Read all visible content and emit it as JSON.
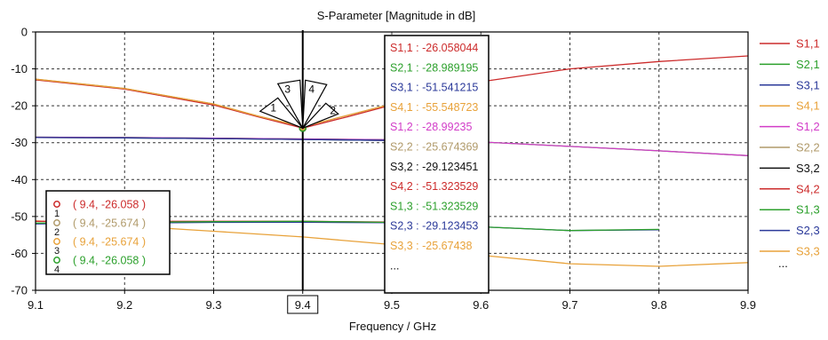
{
  "chart_data": {
    "type": "line",
    "title": "S-Parameter [Magnitude in dB]",
    "xlabel": "Frequency / GHz",
    "ylabel": "",
    "xlim": [
      9.1,
      9.9
    ],
    "ylim": [
      -70,
      0
    ],
    "xticks": [
      "9.1",
      "9.2",
      "9.3",
      "9.4",
      "9.5",
      "9.6",
      "9.7",
      "9.8",
      "9.9"
    ],
    "yticks": [
      "0",
      "-10",
      "-20",
      "-30",
      "-40",
      "-50",
      "-60",
      "-70"
    ],
    "grid": true,
    "legend_position": "right",
    "highlighted_x_tick": "9.4",
    "cursor_x": 9.4,
    "series": [
      {
        "name": "S1,1",
        "color": "#cc2b2b",
        "x": [
          9.1,
          9.2,
          9.3,
          9.35,
          9.4,
          9.45,
          9.5,
          9.6,
          9.7,
          9.8,
          9.9
        ],
        "values": [
          -13,
          -15.5,
          -19.8,
          -23,
          -26.06,
          -23,
          -19.8,
          -13.5,
          -10,
          -8,
          -6.5
        ]
      },
      {
        "name": "S2,1",
        "color": "#2ca02c",
        "x": [
          9.1,
          9.2,
          9.3,
          9.4,
          9.5,
          9.6,
          9.7,
          9.8,
          9.9
        ],
        "values": [
          -28.5,
          -28.6,
          -28.8,
          -28.99,
          -29.2,
          -29.8,
          -31,
          -32.2,
          -33.5
        ]
      },
      {
        "name": "S3,1",
        "color": "#2b3a9a",
        "x": [
          9.1,
          9.2,
          9.3,
          9.4,
          9.5,
          9.6,
          9.7,
          9.8
        ],
        "values": [
          -52,
          -51.8,
          -51.6,
          -51.54,
          -51.7,
          -52.8,
          -53.8,
          -53.6
        ]
      },
      {
        "name": "S4,1",
        "color": "#e8a23a",
        "x": [
          9.1,
          9.2,
          9.3,
          9.4,
          9.5,
          9.6,
          9.7,
          9.8,
          9.9
        ],
        "values": [
          -51.2,
          -52.5,
          -54,
          -55.55,
          -57.6,
          -60.5,
          -62.8,
          -63.5,
          -62.5
        ]
      },
      {
        "name": "S1,2",
        "color": "#d23cc8",
        "x": [
          9.1,
          9.2,
          9.3,
          9.4,
          9.5,
          9.6,
          9.7,
          9.8,
          9.9
        ],
        "values": [
          -28.5,
          -28.6,
          -28.8,
          -28.99,
          -29.2,
          -29.8,
          -31,
          -32.2,
          -33.5
        ]
      },
      {
        "name": "S2,2",
        "color": "#b09a6a",
        "x": [
          9.1,
          9.2,
          9.3,
          9.35,
          9.4,
          9.45,
          9.5
        ],
        "values": [
          -12.8,
          -15.3,
          -19.5,
          -22.8,
          -25.67,
          -22.6,
          -19.5
        ]
      },
      {
        "name": "S3,2",
        "color": "#111111",
        "x": [
          9.1,
          9.2,
          9.3,
          9.4,
          9.5
        ],
        "values": [
          -28.6,
          -28.7,
          -28.9,
          -29.12,
          -29.4
        ]
      },
      {
        "name": "S4,2",
        "color": "#cc2b2b",
        "x": [
          9.1,
          9.2,
          9.3,
          9.4,
          9.5
        ],
        "values": [
          -51.3,
          -51.3,
          -51.3,
          -51.32,
          -51.5
        ]
      },
      {
        "name": "S1,3",
        "color": "#2ca02c",
        "x": [
          9.1,
          9.2,
          9.3,
          9.4,
          9.5,
          9.6,
          9.7,
          9.8
        ],
        "values": [
          -51.8,
          -51.6,
          -51.4,
          -51.32,
          -51.6,
          -52.8,
          -53.8,
          -53.5
        ]
      },
      {
        "name": "S2,3",
        "color": "#2b3a9a",
        "x": [
          9.1,
          9.2,
          9.3,
          9.4,
          9.5
        ],
        "values": [
          -28.6,
          -28.7,
          -28.9,
          -29.12,
          -29.4
        ]
      },
      {
        "name": "S3,3",
        "color": "#e8a23a",
        "x": [
          9.1,
          9.2,
          9.3,
          9.35,
          9.4,
          9.45,
          9.5
        ],
        "values": [
          -12.8,
          -15.3,
          -19.5,
          -22.8,
          -25.67,
          -22.6,
          -19.5
        ]
      }
    ],
    "legend_more": "...",
    "cursor_readout": [
      {
        "text": "S1,1 : -26.058044",
        "color": "#cc2b2b"
      },
      {
        "text": "S2,1 : -28.989195",
        "color": "#2ca02c"
      },
      {
        "text": "S3,1 : -51.541215",
        "color": "#2b3a9a"
      },
      {
        "text": "S4,1 : -55.548723",
        "color": "#e8a23a"
      },
      {
        "text": "S1,2 : -28.99235",
        "color": "#d23cc8"
      },
      {
        "text": "S2,2 : -25.674369",
        "color": "#b09a6a"
      },
      {
        "text": "S3,2 : -29.123451",
        "color": "#111111"
      },
      {
        "text": "S4,2 : -51.323529",
        "color": "#cc2b2b"
      },
      {
        "text": "S1,3 : -51.323529",
        "color": "#2ca02c"
      },
      {
        "text": "S2,3 : -29.123453",
        "color": "#2b3a9a"
      },
      {
        "text": "S3,3 : -25.67438",
        "color": "#e8a23a"
      },
      {
        "text": "...",
        "color": "#111111"
      }
    ],
    "markers": [
      {
        "id": "1",
        "x": 9.4,
        "y": -26.058,
        "label": "( 9.4, -26.058 )",
        "color": "#cc2b2b"
      },
      {
        "id": "2",
        "x": 9.4,
        "y": -25.674,
        "label": "( 9.4, -25.674 )",
        "color": "#b09a6a"
      },
      {
        "id": "3",
        "x": 9.4,
        "y": -25.674,
        "label": "( 9.4, -25.674 )",
        "color": "#e8a23a"
      },
      {
        "id": "4",
        "x": 9.4,
        "y": -26.058,
        "label": "( 9.4, -26.058 )",
        "color": "#2ca02c"
      }
    ]
  }
}
